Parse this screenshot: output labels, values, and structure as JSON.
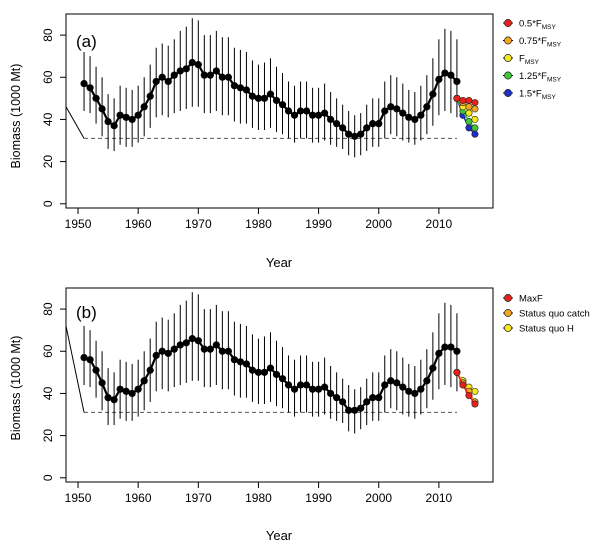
{
  "chart_data": [
    {
      "type": "line",
      "panel_label": "(a)",
      "title": "",
      "xlabel": "Year",
      "ylabel": "Biomass (1000 Mt)",
      "xlim": [
        1948,
        2019
      ],
      "ylim": [
        -2,
        90
      ],
      "xticks": [
        1950,
        1960,
        1970,
        1980,
        1990,
        2000,
        2010
      ],
      "yticks": [
        0,
        20,
        40,
        60,
        80
      ],
      "grid": false,
      "legend_position": "outside-right",
      "reference_level": 31,
      "reference_range": [
        1951,
        2013
      ],
      "initial_trend": {
        "x": [
          1948,
          1951
        ],
        "y": [
          46,
          31
        ]
      },
      "series": [
        {
          "name": "Estimated biomass",
          "x": [
            1951,
            1952,
            1953,
            1954,
            1955,
            1956,
            1957,
            1958,
            1959,
            1960,
            1961,
            1962,
            1963,
            1964,
            1965,
            1966,
            1967,
            1968,
            1969,
            1970,
            1971,
            1972,
            1973,
            1974,
            1975,
            1976,
            1977,
            1978,
            1979,
            1980,
            1981,
            1982,
            1983,
            1984,
            1985,
            1986,
            1987,
            1988,
            1989,
            1990,
            1991,
            1992,
            1993,
            1994,
            1995,
            1996,
            1997,
            1998,
            1999,
            2000,
            2001,
            2002,
            2003,
            2004,
            2005,
            2006,
            2007,
            2008,
            2009,
            2010,
            2011,
            2012,
            2013
          ],
          "values": [
            57,
            55,
            50,
            45,
            39,
            37,
            42,
            41,
            40,
            42,
            46,
            51,
            58,
            60,
            58,
            61,
            63,
            64,
            67,
            66,
            61,
            61,
            63,
            60,
            60,
            56,
            55,
            54,
            51,
            50,
            50,
            52,
            49,
            47,
            44,
            42,
            44,
            44,
            42,
            42,
            43,
            40,
            38,
            36,
            33,
            32,
            33,
            36,
            38,
            38,
            44,
            46,
            45,
            43,
            41,
            40,
            42,
            46,
            52,
            59,
            62,
            61,
            58
          ],
          "ci_low": [
            44,
            43,
            38,
            32,
            26,
            25,
            28,
            27,
            27,
            29,
            32,
            36,
            41,
            42,
            41,
            43,
            44,
            45,
            46,
            46,
            43,
            43,
            44,
            42,
            42,
            39,
            38,
            38,
            36,
            35,
            35,
            36,
            34,
            33,
            31,
            29,
            31,
            31,
            29,
            29,
            30,
            28,
            27,
            26,
            23,
            22,
            23,
            25,
            27,
            27,
            31,
            33,
            32,
            30,
            29,
            28,
            30,
            33,
            37,
            42,
            44,
            43,
            41
          ],
          "ci_high": [
            72,
            70,
            65,
            60,
            52,
            50,
            56,
            55,
            54,
            56,
            60,
            66,
            74,
            76,
            75,
            78,
            82,
            84,
            88,
            87,
            80,
            80,
            82,
            79,
            79,
            74,
            73,
            72,
            68,
            66,
            67,
            69,
            65,
            62,
            58,
            56,
            58,
            58,
            55,
            55,
            57,
            53,
            50,
            47,
            44,
            42,
            43,
            47,
            50,
            50,
            58,
            61,
            60,
            57,
            54,
            53,
            56,
            61,
            69,
            78,
            83,
            82,
            78
          ]
        }
      ],
      "projections": [
        {
          "name": "0.5*FMSY",
          "legend_label": "0.5*F",
          "legend_sub": "MSY",
          "color": "#e8221a",
          "x": [
            2013,
            2014,
            2015,
            2016
          ],
          "values": [
            50,
            49,
            49,
            48
          ]
        },
        {
          "name": "0.75*FMSY",
          "legend_label": "0.75*F",
          "legend_sub": "MSY",
          "color": "#f5a623",
          "x": [
            2013,
            2014,
            2015,
            2016
          ],
          "values": [
            50,
            48,
            46,
            45
          ]
        },
        {
          "name": "FMSY",
          "legend_label": "F",
          "legend_sub": "MSY",
          "color": "#f4e920",
          "x": [
            2013,
            2014,
            2015,
            2016
          ],
          "values": [
            50,
            46,
            43,
            40
          ]
        },
        {
          "name": "1.25*FMSY",
          "legend_label": "1.25*F",
          "legend_sub": "MSY",
          "color": "#3fc83a",
          "x": [
            2013,
            2014,
            2015,
            2016
          ],
          "values": [
            50,
            44,
            39,
            36
          ]
        },
        {
          "name": "1.5*FMSY",
          "legend_label": "1.5*F",
          "legend_sub": "MSY",
          "color": "#1c2fc7",
          "x": [
            2013,
            2014,
            2015,
            2016
          ],
          "values": [
            50,
            42,
            36,
            33
          ]
        }
      ]
    },
    {
      "type": "line",
      "panel_label": "(b)",
      "title": "",
      "xlabel": "Year",
      "ylabel": "Biomass (1000 Mt)",
      "xlim": [
        1948,
        2019
      ],
      "ylim": [
        -2,
        90
      ],
      "xticks": [
        1950,
        1960,
        1970,
        1980,
        1990,
        2000,
        2010
      ],
      "yticks": [
        0,
        20,
        40,
        60,
        80
      ],
      "grid": false,
      "legend_position": "outside-right",
      "reference_level": 31,
      "reference_range": [
        1951,
        2013
      ],
      "initial_trend": {
        "x": [
          1948,
          1951
        ],
        "y": [
          72,
          31
        ]
      },
      "series": [
        {
          "name": "Estimated biomass",
          "x": [
            1951,
            1952,
            1953,
            1954,
            1955,
            1956,
            1957,
            1958,
            1959,
            1960,
            1961,
            1962,
            1963,
            1964,
            1965,
            1966,
            1967,
            1968,
            1969,
            1970,
            1971,
            1972,
            1973,
            1974,
            1975,
            1976,
            1977,
            1978,
            1979,
            1980,
            1981,
            1982,
            1983,
            1984,
            1985,
            1986,
            1987,
            1988,
            1989,
            1990,
            1991,
            1992,
            1993,
            1994,
            1995,
            1996,
            1997,
            1998,
            1999,
            2000,
            2001,
            2002,
            2003,
            2004,
            2005,
            2006,
            2007,
            2008,
            2009,
            2010,
            2011,
            2012,
            2013
          ],
          "values": [
            57,
            56,
            51,
            45,
            38,
            37,
            42,
            41,
            40,
            42,
            46,
            51,
            58,
            60,
            59,
            61,
            63,
            64,
            66,
            65,
            61,
            61,
            63,
            60,
            60,
            56,
            55,
            54,
            51,
            50,
            50,
            52,
            49,
            47,
            44,
            42,
            44,
            44,
            42,
            42,
            43,
            40,
            38,
            36,
            32,
            32,
            33,
            36,
            38,
            38,
            44,
            46,
            45,
            43,
            41,
            40,
            42,
            46,
            52,
            59,
            62,
            62,
            60
          ],
          "ci_low": [
            44,
            43,
            38,
            32,
            25,
            25,
            28,
            27,
            27,
            29,
            32,
            36,
            41,
            42,
            41,
            43,
            44,
            45,
            46,
            46,
            43,
            43,
            44,
            42,
            42,
            39,
            38,
            38,
            36,
            35,
            35,
            36,
            34,
            33,
            31,
            29,
            31,
            31,
            29,
            29,
            30,
            28,
            27,
            26,
            22,
            21,
            23,
            25,
            27,
            27,
            31,
            33,
            32,
            30,
            29,
            28,
            30,
            33,
            37,
            42,
            44,
            43,
            41
          ],
          "ci_high": [
            72,
            70,
            65,
            60,
            52,
            50,
            56,
            55,
            54,
            56,
            60,
            66,
            74,
            76,
            75,
            78,
            82,
            84,
            88,
            87,
            80,
            80,
            82,
            79,
            79,
            74,
            73,
            72,
            68,
            66,
            67,
            69,
            65,
            62,
            58,
            56,
            58,
            58,
            55,
            55,
            57,
            53,
            50,
            47,
            44,
            42,
            43,
            47,
            50,
            50,
            58,
            61,
            60,
            57,
            54,
            53,
            56,
            61,
            69,
            78,
            83,
            82,
            78
          ]
        }
      ],
      "projections": [
        {
          "name": "MaxF",
          "legend_label": "MaxF",
          "legend_sub": "",
          "color": "#e8221a",
          "x": [
            2013,
            2014,
            2015,
            2016
          ],
          "values": [
            50,
            44,
            39,
            35
          ]
        },
        {
          "name": "Status quo catch",
          "legend_label": "Status quo catch",
          "legend_sub": "",
          "color": "#f5a623",
          "x": [
            2013,
            2014,
            2015,
            2016
          ],
          "values": [
            50,
            45,
            41,
            36
          ]
        },
        {
          "name": "Status quo H",
          "legend_label": "Status quo H",
          "legend_sub": "",
          "color": "#f4e920",
          "x": [
            2013,
            2014,
            2015,
            2016
          ],
          "values": [
            50,
            46,
            43,
            41
          ]
        }
      ]
    }
  ]
}
